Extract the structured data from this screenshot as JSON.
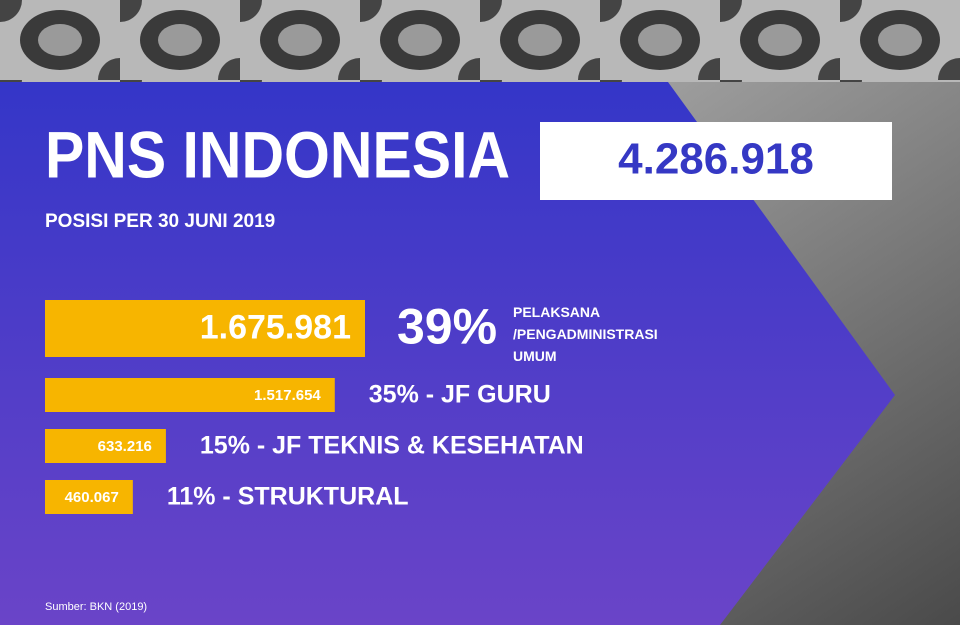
{
  "chart_data": {
    "type": "bar",
    "orientation": "horizontal",
    "title": "PNS INDONESIA",
    "total": {
      "value": 4286918,
      "label": "4.286.918"
    },
    "subtitle": "POSISI PER 30 JUNI 2019",
    "highlight_label": "39%",
    "categories": [
      "PELAKSANA /PENGADMINISTRASI UMUM",
      "35% - JF GURU",
      "15% - JF TEKNIS & KESEHATAN",
      "11% - STRUKTURAL"
    ],
    "values": [
      1675981,
      1517654,
      633216,
      460067
    ],
    "value_labels": [
      "1.675.981",
      "1.517.654",
      "633.216",
      "460.067"
    ],
    "color": "#f7b500",
    "source": "Sumber: BKN (2019)"
  }
}
